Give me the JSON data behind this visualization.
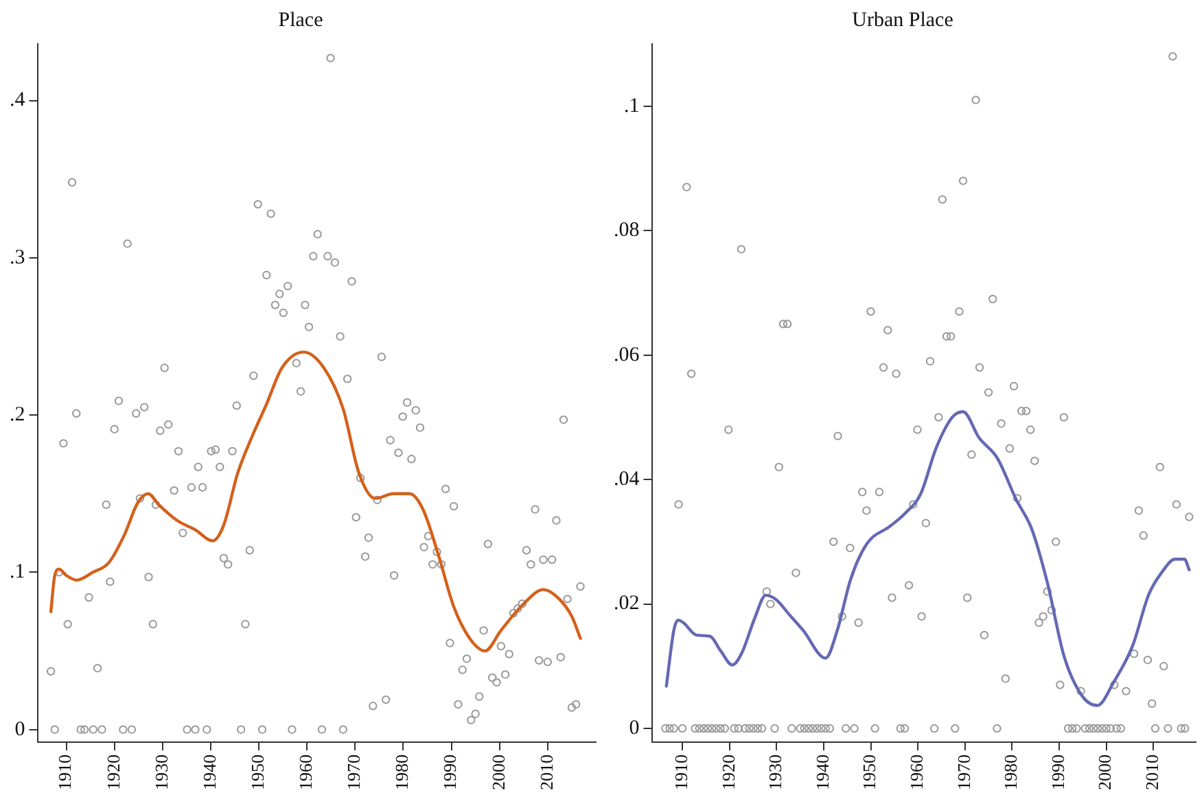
{
  "chart_data": [
    {
      "type": "scatter",
      "title": "Place",
      "xlim": [
        1904,
        2020
      ],
      "xticks": [
        1910,
        1920,
        1930,
        1940,
        1950,
        1960,
        1970,
        1980,
        1990,
        2000,
        2010
      ],
      "ylim": [
        -0.008,
        0.436
      ],
      "yticks": [
        0,
        {
          "value": 0.1,
          "label": ".1"
        },
        {
          "value": 0.2,
          "label": ".2"
        },
        {
          "value": 0.3,
          "label": ".3"
        },
        {
          "value": 0.4,
          "label": ".4"
        }
      ],
      "grid": false,
      "series": [
        {
          "marker": "circle",
          "color": "#999999",
          "x": [
            1906.8,
            1907.6,
            1908.5,
            1909.4,
            1910.3,
            1911.2,
            1912.1,
            1913.0,
            1913.8,
            1914.7,
            1915.6,
            1916.5,
            1917.4,
            1918.3,
            1919.1,
            1920.0,
            1920.9,
            1921.8,
            1922.7,
            1923.6,
            1924.5,
            1925.3,
            1926.2,
            1927.1,
            1928.0,
            1928.6,
            1929.5,
            1930.4,
            1931.2,
            1932.4,
            1933.3,
            1934.2,
            1935.1,
            1936.0,
            1936.8,
            1937.4,
            1938.3,
            1939.2,
            1940.1,
            1941.0,
            1941.9,
            1942.7,
            1943.6,
            1944.5,
            1945.4,
            1946.3,
            1947.2,
            1948.1,
            1948.9,
            1949.8,
            1950.7,
            1951.6,
            1952.5,
            1953.4,
            1954.3,
            1955.1,
            1956.0,
            1956.9,
            1957.8,
            1958.7,
            1959.6,
            1960.4,
            1961.3,
            1962.2,
            1963.1,
            1964.3,
            1964.9,
            1965.8,
            1966.9,
            1967.5,
            1968.4,
            1969.3,
            1970.2,
            1971.1,
            1972.1,
            1972.8,
            1973.7,
            1974.6,
            1975.5,
            1976.4,
            1977.3,
            1978.1,
            1979.0,
            1979.9,
            1980.8,
            1981.7,
            1982.6,
            1983.5,
            1984.3,
            1985.2,
            1986.1,
            1987.0,
            1987.9,
            1988.8,
            1989.7,
            1990.5,
            1991.4,
            1992.3,
            1993.2,
            1994.1,
            1995.0,
            1995.8,
            1996.7,
            1997.6,
            1998.5,
            1999.4,
            2000.3,
            2001.2,
            2002.0,
            2002.9,
            2003.8,
            2004.7,
            2005.6,
            2006.5,
            2007.4,
            2008.2,
            2009.1,
            2010.0,
            2010.9,
            2011.8,
            2012.7,
            2013.3,
            2014.1,
            2015.0,
            2015.9,
            2016.8
          ],
          "values": [
            0.037,
            0,
            0.1,
            0.182,
            0.067,
            0.348,
            0.201,
            0,
            0,
            0.084,
            0,
            0.039,
            0,
            0.143,
            0.094,
            0.191,
            0.209,
            0,
            0.309,
            0,
            0.201,
            0.147,
            0.205,
            0.097,
            0.067,
            0.143,
            0.19,
            0.23,
            0.194,
            0.152,
            0.177,
            0.125,
            0,
            0.154,
            0,
            0.167,
            0.154,
            0,
            0.177,
            0.178,
            0.167,
            0.109,
            0.105,
            0.177,
            0.206,
            0,
            0.067,
            0.114,
            0.225,
            0.334,
            0,
            0.289,
            0.328,
            0.27,
            0.277,
            0.265,
            0.282,
            0,
            0.233,
            0.215,
            0.27,
            0.256,
            0.301,
            0.315,
            0,
            0.301,
            0.427,
            0.297,
            0.25,
            0,
            0.223,
            0.285,
            0.135,
            0.16,
            0.11,
            0.122,
            0.015,
            0.146,
            0.237,
            0.019,
            0.184,
            0.098,
            0.176,
            0.199,
            0.208,
            0.172,
            0.203,
            0.192,
            0.116,
            0.123,
            0.105,
            0.113,
            0.105,
            0.153,
            0.055,
            0.142,
            0.016,
            0.038,
            0.045,
            0.006,
            0.01,
            0.021,
            0.063,
            0.118,
            0.033,
            0.03,
            0.053,
            0.035,
            0.048,
            0.074,
            0.077,
            0.08,
            0.114,
            0.105,
            0.14,
            0.044,
            0.108,
            0.043,
            0.108,
            0.133,
            0.046,
            0.197,
            0.083,
            0.014,
            0.016,
            0.091
          ]
        },
        {
          "type": "line",
          "marker": "none",
          "color": "#d4601a",
          "x": [
            1906.8,
            1907.6,
            1908.5,
            1910.0,
            1912.2,
            1915.5,
            1918.8,
            1922.1,
            1924.8,
            1927.0,
            1929.2,
            1933.0,
            1936.8,
            1940.4,
            1942.7,
            1945.6,
            1948.4,
            1951.6,
            1954.8,
            1959.3,
            1963.5,
            1967.5,
            1970.8,
            1974.2,
            1978.0,
            1981.3,
            1984.1,
            1987.3,
            1990.5,
            1993.8,
            1997.0,
            2000.3,
            2004.7,
            2009.1,
            2012.4,
            2015.0,
            2016.8
          ],
          "values": [
            0.075,
            0.098,
            0.102,
            0.098,
            0.095,
            0.1,
            0.106,
            0.124,
            0.144,
            0.15,
            0.143,
            0.133,
            0.127,
            0.12,
            0.13,
            0.163,
            0.185,
            0.207,
            0.23,
            0.24,
            0.23,
            0.204,
            0.163,
            0.147,
            0.15,
            0.15,
            0.14,
            0.111,
            0.078,
            0.058,
            0.05,
            0.063,
            0.079,
            0.089,
            0.083,
            0.072,
            0.058
          ]
        }
      ]
    },
    {
      "type": "scatter",
      "title": "Urban Place",
      "xlim": [
        1903.5,
        2019
      ],
      "xticks": [
        1910,
        1920,
        1930,
        1940,
        1950,
        1960,
        1970,
        1980,
        1990,
        2000,
        2010
      ],
      "ylim": [
        -0.0022,
        0.11
      ],
      "yticks": [
        0,
        {
          "value": 0.02,
          "label": ".02"
        },
        {
          "value": 0.04,
          "label": ".04"
        },
        {
          "value": 0.06,
          "label": ".06"
        },
        {
          "value": 0.08,
          "label": ".08"
        },
        {
          "value": 0.1,
          "label": ".1"
        }
      ],
      "grid": false,
      "series": [
        {
          "marker": "circle",
          "color": "#999999",
          "x": [
            1909.2,
            1910.9,
            1911.9,
            1919.8,
            1922.5,
            1927.9,
            1928.7,
            1930.5,
            1931.4,
            1932.3,
            1934.1,
            1942.1,
            1943.0,
            1943.9,
            1945.6,
            1947.4,
            1948.2,
            1949.1,
            1950.0,
            1951.8,
            1952.7,
            1953.6,
            1954.5,
            1955.4,
            1958.1,
            1959.0,
            1959.9,
            1960.8,
            1961.7,
            1962.6,
            1964.4,
            1965.2,
            1966.1,
            1967.0,
            1968.8,
            1969.6,
            1970.5,
            1971.4,
            1972.3,
            1973.1,
            1974.1,
            1975.0,
            1975.9,
            1977.7,
            1978.6,
            1979.5,
            1980.4,
            1981.1,
            1982.0,
            1983.0,
            1983.9,
            1984.8,
            1985.7,
            1986.6,
            1987.5,
            1988.4,
            1989.3,
            1990.2,
            1991.0,
            1994.6,
            2001.7,
            2004.2,
            2005.9,
            2006.9,
            2007.9,
            2008.8,
            2009.7,
            2011.4,
            2012.2,
            2014.1,
            2014.9,
            2017.6,
            1906.4,
            1907.3,
            1908.2,
            1910.0,
            1912.7,
            1913.6,
            1914.5,
            1915.4,
            1916.3,
            1917.2,
            1918.1,
            1919.0,
            1921.0,
            1921.9,
            1923.3,
            1924.2,
            1925.1,
            1926.0,
            1926.9,
            1929.6,
            1933.2,
            1935.0,
            1935.9,
            1936.8,
            1937.7,
            1938.6,
            1939.5,
            1940.4,
            1941.3,
            1944.7,
            1946.5,
            1950.9,
            1956.3,
            1957.2,
            1963.5,
            1967.9,
            1976.8,
            1991.9,
            1992.8,
            1993.7,
            1995.5,
            1996.4,
            1997.3,
            1998.2,
            1999.1,
            2000.0,
            2000.9,
            2002.2,
            2003.1,
            2010.4,
            2013.1,
            2015.9,
            2016.7
          ],
          "values": [
            0.036,
            0.087,
            0.057,
            0.048,
            0.077,
            0.022,
            0.02,
            0.042,
            0.065,
            0.065,
            0.025,
            0.03,
            0.047,
            0.018,
            0.029,
            0.017,
            0.038,
            0.035,
            0.067,
            0.038,
            0.058,
            0.064,
            0.021,
            0.057,
            0.023,
            0.036,
            0.048,
            0.018,
            0.033,
            0.059,
            0.05,
            0.085,
            0.063,
            0.063,
            0.067,
            0.088,
            0.021,
            0.044,
            0.101,
            0.058,
            0.015,
            0.054,
            0.069,
            0.049,
            0.008,
            0.045,
            0.055,
            0.037,
            0.051,
            0.051,
            0.048,
            0.043,
            0.017,
            0.018,
            0.022,
            0.019,
            0.03,
            0.007,
            0.05,
            0.006,
            0.007,
            0.006,
            0.012,
            0.035,
            0.031,
            0.011,
            0.004,
            0.042,
            0.01,
            0.108,
            0.036,
            0.034,
            0,
            0,
            0,
            0,
            0,
            0,
            0,
            0,
            0,
            0,
            0,
            0,
            0,
            0,
            0,
            0,
            0,
            0,
            0,
            0,
            0,
            0,
            0,
            0,
            0,
            0,
            0,
            0,
            0,
            0,
            0,
            0,
            0,
            0,
            0,
            0,
            0,
            0,
            0,
            0,
            0,
            0,
            0,
            0,
            0,
            0,
            0,
            0,
            0,
            0,
            0,
            0,
            0
          ]
        },
        {
          "type": "line",
          "marker": "none",
          "color": "#6468b4",
          "x": [
            1906.6,
            1908.2,
            1909.1,
            1910.2,
            1913.0,
            1915.9,
            1918.1,
            1920.6,
            1922.6,
            1925.4,
            1927.7,
            1929.9,
            1932.8,
            1935.6,
            1940.4,
            1942.9,
            1945.7,
            1949.1,
            1954.1,
            1957.2,
            1960.6,
            1963.9,
            1967.3,
            1969.6,
            1973.0,
            1976.9,
            1980.8,
            1984.2,
            1987.6,
            1991.0,
            1994.9,
            1998.1,
            2001.7,
            2005.6,
            2009.0,
            2011.8,
            2014.6,
            2016.6,
            2017.6
          ],
          "values": [
            0.0068,
            0.0158,
            0.0174,
            0.017,
            0.015,
            0.0148,
            0.0125,
            0.0102,
            0.0121,
            0.0178,
            0.0214,
            0.0207,
            0.0182,
            0.0158,
            0.0113,
            0.0158,
            0.0239,
            0.0296,
            0.0325,
            0.0345,
            0.0377,
            0.0451,
            0.05,
            0.0509,
            0.0467,
            0.0434,
            0.0369,
            0.032,
            0.0231,
            0.0117,
            0.0052,
            0.0037,
            0.0076,
            0.0133,
            0.0215,
            0.0251,
            0.0272,
            0.0272,
            0.0255
          ]
        }
      ]
    }
  ]
}
